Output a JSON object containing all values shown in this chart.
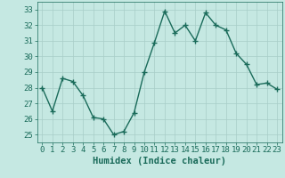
{
  "x": [
    0,
    1,
    2,
    3,
    4,
    5,
    6,
    7,
    8,
    9,
    10,
    11,
    12,
    13,
    14,
    15,
    16,
    17,
    18,
    19,
    20,
    21,
    22,
    23
  ],
  "y": [
    28.0,
    26.5,
    28.6,
    28.4,
    27.5,
    26.1,
    26.0,
    25.0,
    25.2,
    26.4,
    29.0,
    30.9,
    32.9,
    31.5,
    32.0,
    31.0,
    32.8,
    32.0,
    31.7,
    30.2,
    29.5,
    28.2,
    28.3,
    27.9
  ],
  "line_color": "#1a6b5a",
  "marker": "+",
  "marker_size": 4,
  "bg_color": "#c5e8e2",
  "grid_color": "#a8cdc8",
  "xlabel": "Humidex (Indice chaleur)",
  "xlim": [
    -0.5,
    23.5
  ],
  "ylim": [
    24.5,
    33.5
  ],
  "yticks": [
    25,
    26,
    27,
    28,
    29,
    30,
    31,
    32,
    33
  ],
  "xticks": [
    0,
    1,
    2,
    3,
    4,
    5,
    6,
    7,
    8,
    9,
    10,
    11,
    12,
    13,
    14,
    15,
    16,
    17,
    18,
    19,
    20,
    21,
    22,
    23
  ],
  "xlabel_fontsize": 7.5,
  "tick_fontsize": 6.5,
  "linewidth": 1.0
}
